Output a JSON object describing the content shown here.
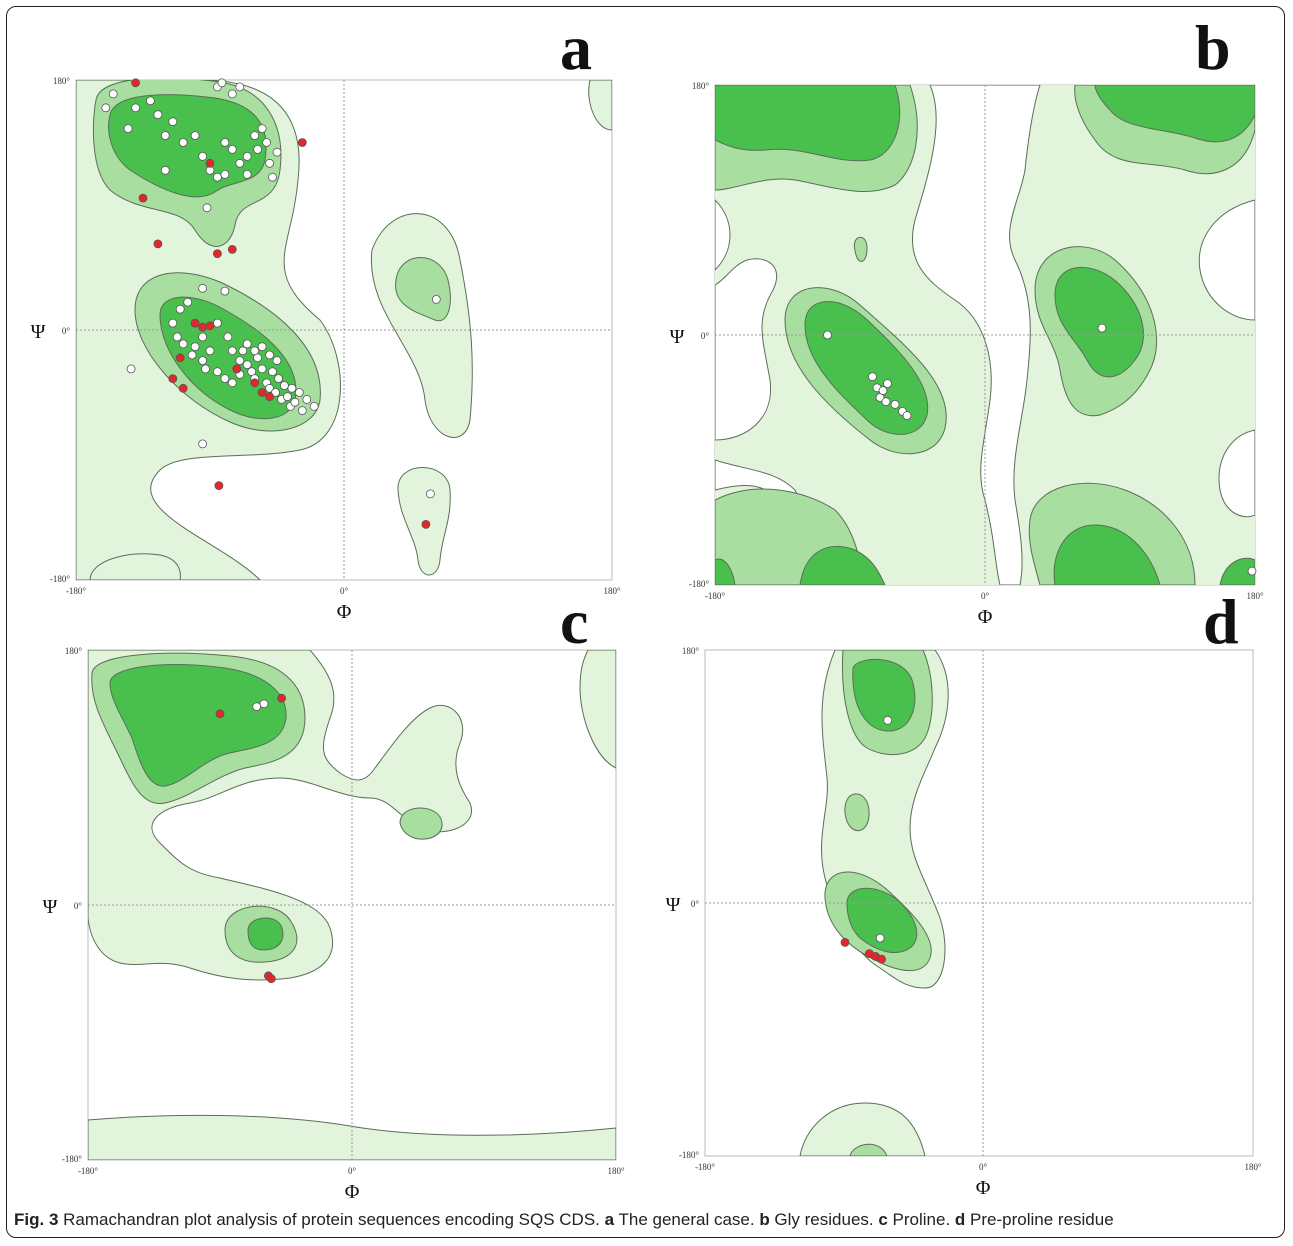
{
  "colors": {
    "allowed": "#e3f4dc",
    "favoured": "#a8dea0",
    "core": "#49c04d",
    "contour": "#5a6e58",
    "axis_dash": "#999999",
    "point_normal": "#ffffff",
    "point_outlier": "#e8262a"
  },
  "caption": {
    "label": "Fig. 3",
    "text": " Ramachandran plot analysis of protein sequences encoding SQS CDS. ",
    "a_letter": "a",
    "a_text": " The general case. ",
    "b_letter": "b",
    "b_text": " Gly residues. ",
    "c_letter": "c",
    "c_text": " Proline. ",
    "d_letter": "d",
    "d_text": " Pre-proline residue"
  },
  "chart_data": [
    {
      "type": "scatter",
      "panel": "a",
      "title": "",
      "xlabel": "Φ",
      "ylabel": "Ψ",
      "xlim": [
        -180,
        180
      ],
      "ylim": [
        -180,
        180
      ],
      "x_ticks": [
        "-180°",
        "0°",
        "180°"
      ],
      "y_ticks": [
        "180°",
        "0°",
        "-180°"
      ],
      "grid": "dashed lines at 0",
      "series": [
        {
          "color": "white",
          "points": [
            [
              -160,
              160
            ],
            [
              -155,
              170
            ],
            [
              -145,
              145
            ],
            [
              -140,
              160
            ],
            [
              -130,
              165
            ],
            [
              -125,
              155
            ],
            [
              -120,
              140
            ],
            [
              -115,
              150
            ],
            [
              -108,
              135
            ],
            [
              -100,
              140
            ],
            [
              -95,
              125
            ],
            [
              -90,
              115
            ],
            [
              -85,
              110
            ],
            [
              -80,
              135
            ],
            [
              -75,
              130
            ],
            [
              -70,
              120
            ],
            [
              -65,
              125
            ],
            [
              -60,
              140
            ],
            [
              -58,
              130
            ],
            [
              -55,
              145
            ],
            [
              -52,
              135
            ],
            [
              -50,
              120
            ],
            [
              -48,
              110
            ],
            [
              -45,
              128
            ],
            [
              -65,
              112
            ],
            [
              -80,
              112
            ],
            [
              -85,
              175
            ],
            [
              -82,
              178
            ],
            [
              -75,
              170
            ],
            [
              -70,
              175
            ],
            [
              -92,
              88
            ],
            [
              -120,
              115
            ],
            [
              -80,
              28
            ],
            [
              -95,
              30
            ],
            [
              -105,
              20
            ],
            [
              -110,
              15
            ],
            [
              -115,
              5
            ],
            [
              -112,
              -5
            ],
            [
              -108,
              -10
            ],
            [
              -102,
              -18
            ],
            [
              -95,
              -22
            ],
            [
              -90,
              -15
            ],
            [
              -85,
              -30
            ],
            [
              -80,
              -35
            ],
            [
              -75,
              -38
            ],
            [
              -70,
              -32
            ],
            [
              -65,
              -25
            ],
            [
              -62,
              -30
            ],
            [
              -60,
              -35
            ],
            [
              -58,
              -20
            ],
            [
              -55,
              -28
            ],
            [
              -52,
              -38
            ],
            [
              -50,
              -42
            ],
            [
              -48,
              -30
            ],
            [
              -46,
              -45
            ],
            [
              -44,
              -35
            ],
            [
              -42,
              -50
            ],
            [
              -40,
              -40
            ],
            [
              -38,
              -48
            ],
            [
              -36,
              -55
            ],
            [
              -35,
              -42
            ],
            [
              -33,
              -52
            ],
            [
              -30,
              -45
            ],
            [
              -28,
              -58
            ],
            [
              -25,
              -50
            ],
            [
              -20,
              -55
            ],
            [
              -70,
              -22
            ],
            [
              -68,
              -15
            ],
            [
              -72,
              -28
            ],
            [
              -65,
              -10
            ],
            [
              -60,
              -15
            ],
            [
              -55,
              -12
            ],
            [
              -50,
              -18
            ],
            [
              -45,
              -22
            ],
            [
              -85,
              5
            ],
            [
              -95,
              -5
            ],
            [
              -100,
              -12
            ],
            [
              -78,
              -5
            ],
            [
              -75,
              -15
            ],
            [
              -93,
              -28
            ],
            [
              -143,
              -28
            ],
            [
              -95,
              -82
            ],
            [
              58,
              -118
            ],
            [
              62,
              22
            ]
          ]
        },
        {
          "color": "red",
          "points": [
            [
              -140,
              178
            ],
            [
              -90,
              120
            ],
            [
              -135,
              95
            ],
            [
              -125,
              62
            ],
            [
              -85,
              55
            ],
            [
              -75,
              58
            ],
            [
              -28,
              135
            ],
            [
              -110,
              -20
            ],
            [
              -115,
              -35
            ],
            [
              -108,
              -42
            ],
            [
              -100,
              5
            ],
            [
              -95,
              2
            ],
            [
              -90,
              3
            ],
            [
              -72,
              -28
            ],
            [
              -60,
              -38
            ],
            [
              -55,
              -45
            ],
            [
              -50,
              -48
            ],
            [
              -84,
              -112
            ],
            [
              55,
              -140
            ]
          ]
        }
      ]
    },
    {
      "type": "scatter",
      "panel": "b",
      "title": "",
      "xlabel": "Φ",
      "ylabel": "Ψ",
      "xlim": [
        -180,
        180
      ],
      "ylim": [
        -180,
        180
      ],
      "x_ticks": [
        "-180°",
        "0°",
        "180°"
      ],
      "y_ticks": [
        "180°",
        "0°",
        "-180°"
      ],
      "grid": "dashed lines at 0",
      "series": [
        {
          "color": "white",
          "points": [
            [
              -105,
              0
            ],
            [
              -75,
              -30
            ],
            [
              -72,
              -38
            ],
            [
              -70,
              -45
            ],
            [
              -68,
              -40
            ],
            [
              -65,
              -35
            ],
            [
              -66,
              -48
            ],
            [
              -60,
              -50
            ],
            [
              -55,
              -55
            ],
            [
              -52,
              -58
            ],
            [
              78,
              5
            ],
            [
              178,
              -170
            ]
          ]
        },
        {
          "color": "red",
          "points": []
        }
      ]
    },
    {
      "type": "scatter",
      "panel": "c",
      "title": "",
      "xlabel": "Φ",
      "ylabel": "Ψ",
      "xlim": [
        -180,
        180
      ],
      "ylim": [
        -180,
        180
      ],
      "x_ticks": [
        "-180°",
        "0°",
        "180°"
      ],
      "y_ticks": [
        "180°",
        "0°",
        "-180°"
      ],
      "grid": "dashed lines at 0",
      "series": [
        {
          "color": "white",
          "points": [
            [
              -65,
              140
            ],
            [
              -60,
              142
            ]
          ]
        },
        {
          "color": "red",
          "points": [
            [
              -90,
              135
            ],
            [
              -48,
              146
            ],
            [
              -57,
              -50
            ],
            [
              -55,
              -52
            ]
          ]
        }
      ]
    },
    {
      "type": "scatter",
      "panel": "d",
      "title": "",
      "xlabel": "Φ",
      "ylabel": "Ψ",
      "xlim": [
        -180,
        180
      ],
      "ylim": [
        -180,
        180
      ],
      "x_ticks": [
        "-180°",
        "0°",
        "180°"
      ],
      "y_ticks": [
        "180°",
        "0°",
        "-180°"
      ],
      "grid": "dashed lines at 0",
      "series": [
        {
          "color": "white",
          "points": [
            [
              -60,
              130
            ],
            [
              -65,
              -25
            ]
          ]
        },
        {
          "color": "red",
          "points": [
            [
              -88,
              -28
            ],
            [
              -72,
              -36
            ],
            [
              -68,
              -38
            ],
            [
              -64,
              -40
            ]
          ]
        }
      ]
    }
  ]
}
